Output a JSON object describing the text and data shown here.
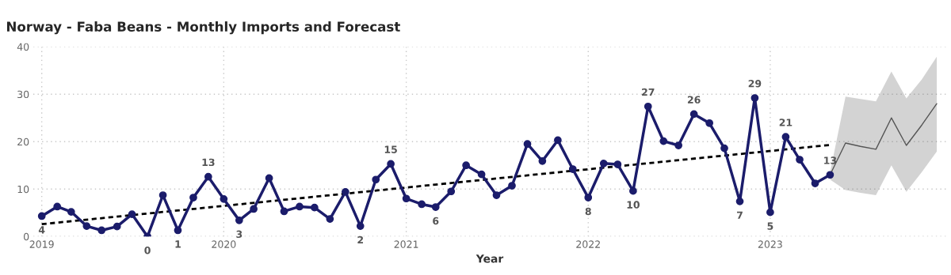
{
  "chart_data": {
    "type": "line",
    "title": "Norway - Faba Beans - Monthly Imports and Forecast",
    "xlabel": "Year",
    "xlim": [
      "2018-12-15",
      "2023-12-20"
    ],
    "xticks": [
      "2019",
      "2020",
      "2021",
      "2022",
      "2023"
    ],
    "ylim": [
      0,
      40
    ],
    "yticks": [
      0,
      10,
      20,
      30,
      40
    ],
    "grid": true,
    "legend": false,
    "series": [
      {
        "color": "#1b1c6b",
        "marker": "circle",
        "line_style": "solid",
        "x": [
          "2019-01",
          "2019-02",
          "2019-03",
          "2019-04",
          "2019-05",
          "2019-06",
          "2019-07",
          "2019-08",
          "2019-09",
          "2019-10",
          "2019-11",
          "2019-12",
          "2020-01",
          "2020-02",
          "2020-03",
          "2020-04",
          "2020-05",
          "2020-06",
          "2020-07",
          "2020-08",
          "2020-09",
          "2020-10",
          "2020-11",
          "2020-12",
          "2021-01",
          "2021-02",
          "2021-03",
          "2021-04",
          "2021-05",
          "2021-06",
          "2021-07",
          "2021-08",
          "2021-09",
          "2021-10",
          "2021-11",
          "2021-12",
          "2022-01",
          "2022-02",
          "2022-03",
          "2022-04",
          "2022-05",
          "2022-06",
          "2022-07",
          "2022-08",
          "2022-09",
          "2022-10",
          "2022-11",
          "2022-12",
          "2023-01",
          "2023-02",
          "2023-03",
          "2023-04",
          "2023-05"
        ],
        "values": [
          4.3,
          6.3,
          5.2,
          2.2,
          1.3,
          2.1,
          4.7,
          0,
          8.7,
          1.3,
          8.2,
          12.6,
          7.9,
          3.4,
          5.8,
          12.3,
          5.3,
          6.3,
          6.1,
          3.7,
          9.4,
          2.2,
          12.0,
          15.3,
          8.0,
          6.8,
          6.2,
          9.5,
          15.0,
          13.1,
          8.7,
          10.7,
          19.5,
          15.9,
          20.3,
          14.2,
          8.2,
          15.4,
          15.2,
          9.6,
          27.4,
          20.1,
          19.2,
          25.8,
          23.9,
          18.6,
          7.4,
          29.2,
          5.1,
          21.0,
          16.2,
          11.2,
          13.0
        ],
        "value_labels": [
          "4",
          null,
          null,
          null,
          null,
          null,
          null,
          "0",
          null,
          "1",
          null,
          "13",
          null,
          "3",
          null,
          null,
          null,
          null,
          null,
          null,
          null,
          "2",
          null,
          "15",
          null,
          null,
          "6",
          null,
          null,
          null,
          null,
          null,
          null,
          null,
          null,
          null,
          "8",
          null,
          null,
          "10",
          "27",
          null,
          null,
          "26",
          null,
          null,
          "7",
          "29",
          "5",
          "21",
          null,
          null,
          "13"
        ]
      },
      {
        "color": "#000000",
        "marker": "none",
        "line_style": "dashed",
        "x": [
          "2019-01",
          "2023-05"
        ],
        "values": [
          2.6,
          19.3
        ]
      },
      {
        "color": "#555555",
        "marker": "none",
        "line_style": "solid",
        "x": [
          "2023-05",
          "2023-06",
          "2023-07",
          "2023-08",
          "2023-09",
          "2023-10",
          "2023-11",
          "2023-12"
        ],
        "values": [
          13.0,
          19.7,
          19.0,
          18.4,
          25.0,
          19.2,
          23.5,
          28.0
        ],
        "lower": [
          12.0,
          9.8,
          9.2,
          8.7,
          15.0,
          9.4,
          13.6,
          17.9
        ],
        "upper": [
          13.5,
          29.5,
          29.0,
          28.5,
          34.8,
          29.1,
          33.1,
          37.9
        ]
      }
    ]
  }
}
